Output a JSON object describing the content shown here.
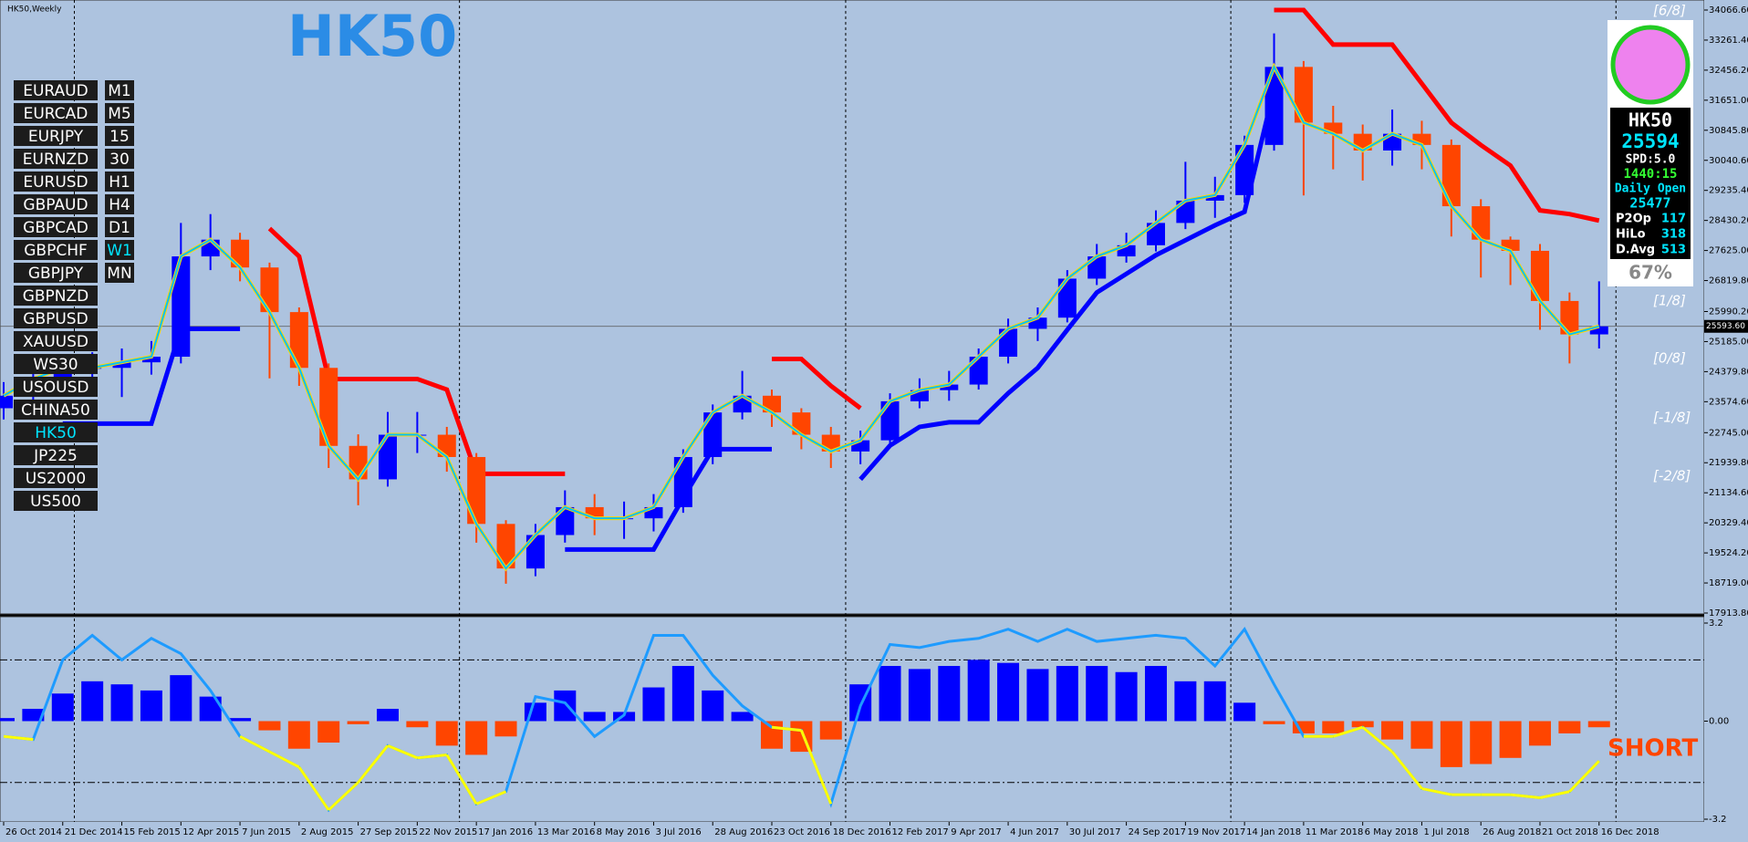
{
  "window_title": "HK50,Weekly",
  "watermark": "HK50",
  "signal": "SHORT",
  "symbols": [
    {
      "symbol": "EURAUD",
      "timeframe": "M1"
    },
    {
      "symbol": "EURCAD",
      "timeframe": "M5"
    },
    {
      "symbol": "EURJPY",
      "timeframe": "15"
    },
    {
      "symbol": "EURNZD",
      "timeframe": "30"
    },
    {
      "symbol": "EURUSD",
      "timeframe": "H1"
    },
    {
      "symbol": "GBPAUD",
      "timeframe": "H4"
    },
    {
      "symbol": "GBPCAD",
      "timeframe": "D1"
    },
    {
      "symbol": "GBPCHF",
      "timeframe": "W1"
    },
    {
      "symbol": "GBPJPY",
      "timeframe": "MN"
    },
    {
      "symbol": "GBPNZD"
    },
    {
      "symbol": "GBPUSD"
    },
    {
      "symbol": "XAUUSD"
    },
    {
      "symbol": "WS30"
    },
    {
      "symbol": "USOUSD"
    },
    {
      "symbol": "CHINA50"
    },
    {
      "symbol": "HK50"
    },
    {
      "symbol": "JP225"
    },
    {
      "symbol": "US2000"
    },
    {
      "symbol": "US500"
    }
  ],
  "info_panel": {
    "symbol": "HK50",
    "price": "25594",
    "spread": "SPD:5.0",
    "timer": "1440:15",
    "daily_open_label": "Daily Open",
    "daily_open": "25477",
    "rows": [
      [
        "P2Op",
        "117"
      ],
      [
        "HiLo",
        "318"
      ],
      [
        "D.Avg",
        "513"
      ]
    ],
    "percent": "67%"
  },
  "gann_levels": [
    "[6/8]",
    "[1/8]",
    "[0/8]",
    "[-1/8]",
    "[-2/8]"
  ],
  "chart_data": [
    {
      "type": "candlestick",
      "colors": {
        "up": "#0000ff",
        "down": "#ff4500"
      },
      "x": [
        "2014-10-26",
        "2014-11-23",
        "2014-12-21",
        "2015-01-18",
        "2015-02-15",
        "2015-03-15",
        "2015-04-12",
        "2015-05-10",
        "2015-06-07",
        "2015-07-05",
        "2015-08-02",
        "2015-08-30",
        "2015-09-27",
        "2015-10-25",
        "2015-11-22",
        "2015-12-20",
        "2016-01-17",
        "2016-02-14",
        "2016-03-13",
        "2016-04-10",
        "2016-05-08",
        "2016-06-05",
        "2016-07-03",
        "2016-07-31",
        "2016-08-28",
        "2016-09-25",
        "2016-10-23",
        "2016-11-20",
        "2016-12-18",
        "2017-01-15",
        "2017-02-12",
        "2017-03-12",
        "2017-04-09",
        "2017-05-07",
        "2017-06-04",
        "2017-07-02",
        "2017-07-30",
        "2017-08-27",
        "2017-09-24",
        "2017-10-22",
        "2017-11-19",
        "2017-12-17",
        "2018-01-14",
        "2018-02-11",
        "2018-03-11",
        "2018-04-08",
        "2018-05-06",
        "2018-06-03",
        "2018-07-01",
        "2018-07-29",
        "2018-08-26",
        "2018-09-23",
        "2018-10-21",
        "2018-11-18",
        "2018-12-16"
      ],
      "open": [
        23400,
        23735,
        24183,
        24481,
        24481,
        24630,
        24780,
        27467,
        27915,
        27170,
        25975,
        24481,
        22391,
        21495,
        22690,
        22690,
        22093,
        20301,
        19107,
        20003,
        20750,
        20451,
        20451,
        20750,
        22093,
        23287,
        23735,
        23287,
        22690,
        22242,
        22541,
        23586,
        23884,
        24034,
        24780,
        25527,
        25826,
        26871,
        27467,
        27766,
        28363,
        28960,
        29109,
        30453,
        32543,
        31050,
        30752,
        30304,
        30752,
        30453,
        28811,
        27915,
        27616,
        26273,
        25378
      ],
      "high": [
        24100,
        24500,
        24800,
        24900,
        25000,
        25200,
        28363,
        28600,
        28100,
        27300,
        26100,
        24600,
        22700,
        23300,
        23300,
        22900,
        22200,
        20400,
        20300,
        21200,
        21100,
        20900,
        21100,
        22300,
        23500,
        24400,
        23900,
        23400,
        22900,
        22800,
        23800,
        24200,
        24400,
        25000,
        25800,
        26100,
        27100,
        27800,
        28100,
        28700,
        30000,
        29600,
        30700,
        33439,
        32700,
        31500,
        31000,
        31400,
        31100,
        30600,
        29000,
        28000,
        27800,
        26500,
        26800
      ],
      "low": [
        23100,
        23500,
        23900,
        24000,
        23700,
        24300,
        24600,
        27100,
        26800,
        24200,
        24000,
        21800,
        20800,
        21300,
        22200,
        21700,
        19800,
        18700,
        18900,
        19800,
        20000,
        19900,
        20100,
        20600,
        21900,
        23100,
        22900,
        22300,
        21800,
        21900,
        22400,
        23400,
        23600,
        23900,
        24600,
        25200,
        25700,
        26700,
        27300,
        27600,
        28200,
        28500,
        28900,
        30300,
        29100,
        29800,
        29500,
        29900,
        29800,
        28000,
        26900,
        26700,
        25500,
        24600,
        25000
      ],
      "close": [
        23735,
        24183,
        24481,
        24481,
        24630,
        24780,
        27467,
        27915,
        27170,
        25975,
        24481,
        22391,
        21495,
        22690,
        22690,
        22093,
        20301,
        19107,
        20003,
        20750,
        20451,
        20451,
        20750,
        22093,
        23287,
        23735,
        23287,
        22690,
        22242,
        22541,
        23586,
        23884,
        24034,
        24780,
        25527,
        25826,
        26871,
        27467,
        27766,
        28363,
        28960,
        29109,
        30453,
        32543,
        31050,
        30752,
        30304,
        30752,
        30453,
        28811,
        27915,
        27616,
        26273,
        25378,
        25594
      ],
      "series": [
        {
          "color": "#ff0000",
          "values": [
            null,
            null,
            null,
            null,
            null,
            null,
            null,
            null,
            null,
            28214,
            27467,
            24183,
            24183,
            24183,
            24183,
            23900,
            21644,
            21644,
            21644,
            21644,
            null,
            null,
            null,
            null,
            null,
            null,
            24720,
            24720,
            24000,
            23400,
            null,
            null,
            null,
            null,
            null,
            null,
            null,
            null,
            null,
            null,
            null,
            null,
            null,
            34066,
            34066,
            33140,
            33140,
            33140,
            32096,
            31050,
            30450,
            29900,
            28700,
            28600,
            28425
          ]
        },
        {
          "color": "#0000ff",
          "values": [
            null,
            null,
            22988,
            22988,
            22988,
            22988,
            25527,
            25527,
            25527,
            null,
            null,
            null,
            null,
            null,
            null,
            null,
            null,
            null,
            null,
            19614,
            19614,
            19614,
            19614,
            21000,
            22302,
            22302,
            22302,
            null,
            null,
            21495,
            22400,
            22900,
            23023,
            23023,
            23800,
            24480,
            25500,
            26500,
            27000,
            27500,
            27900,
            28300,
            28661,
            31946,
            null,
            null,
            null,
            null,
            null,
            null,
            null,
            null,
            null,
            null,
            null
          ]
        }
      ],
      "xlim": [
        "2014-10-26",
        "2019-03-17"
      ],
      "xticks": [
        {
          "value": "2014-10-26",
          "label": "26 Oct 2014"
        },
        {
          "value": "2014-12-21",
          "label": "21 Dec 2014"
        },
        {
          "value": "2015-02-15",
          "label": "15 Feb 2015"
        },
        {
          "value": "2015-04-12",
          "label": "12 Apr 2015"
        },
        {
          "value": "2015-06-07",
          "label": "7 Jun 2015"
        },
        {
          "value": "2015-08-02",
          "label": "2 Aug 2015"
        },
        {
          "value": "2015-09-27",
          "label": "27 Sep 2015"
        },
        {
          "value": "2015-11-22",
          "label": "22 Nov 2015"
        },
        {
          "value": "2016-01-17",
          "label": "17 Jan 2016"
        },
        {
          "value": "2016-03-13",
          "label": "13 Mar 2016"
        },
        {
          "value": "2016-05-08",
          "label": "8 May 2016"
        },
        {
          "value": "2016-07-03",
          "label": "3 Jul 2016"
        },
        {
          "value": "2016-08-28",
          "label": "28 Aug 2016"
        },
        {
          "value": "2016-10-23",
          "label": "23 Oct 2016"
        },
        {
          "value": "2016-12-18",
          "label": "18 Dec 2016"
        },
        {
          "value": "2017-02-12",
          "label": "12 Feb 2017"
        },
        {
          "value": "2017-04-09",
          "label": "9 Apr 2017"
        },
        {
          "value": "2017-06-04",
          "label": "4 Jun 2017"
        },
        {
          "value": "2017-07-30",
          "label": "30 Jul 2017"
        },
        {
          "value": "2017-09-24",
          "label": "24 Sep 2017"
        },
        {
          "value": "2017-11-19",
          "label": "19 Nov 2017"
        },
        {
          "value": "2018-01-14",
          "label": "14 Jan 2018"
        },
        {
          "value": "2018-03-11",
          "label": "11 Mar 2018"
        },
        {
          "value": "2018-05-06",
          "label": "6 May 2018"
        },
        {
          "value": "2018-07-01",
          "label": "1 Jul 2018"
        },
        {
          "value": "2018-08-26",
          "label": "26 Aug 2018"
        },
        {
          "value": "2018-10-21",
          "label": "21 Oct 2018"
        },
        {
          "value": "2018-12-16",
          "label": "16 Dec 2018"
        }
      ],
      "ylim": [
        17913.8,
        34066.6
      ],
      "yticks": [
        {
          "value": 34066.6,
          "label": "34066.60"
        },
        {
          "value": 33261.4,
          "label": "33261.40"
        },
        {
          "value": 32456.2,
          "label": "32456.20"
        },
        {
          "value": 31651,
          "label": "31651.00"
        },
        {
          "value": 30845.8,
          "label": "30845.80"
        },
        {
          "value": 30040.6,
          "label": "30040.60"
        },
        {
          "value": 29235.4,
          "label": "29235.40"
        },
        {
          "value": 28430.2,
          "label": "28430.20"
        },
        {
          "value": 27625,
          "label": "27625.00"
        },
        {
          "value": 26819.8,
          "label": "26819.80"
        },
        {
          "value": 25990.2,
          "label": "25990.20"
        },
        {
          "value": 25185,
          "label": "25185.00"
        },
        {
          "value": 24379.8,
          "label": "24379.80"
        },
        {
          "value": 23574.6,
          "label": "23574.60"
        },
        {
          "value": 22745,
          "label": "22745.00"
        },
        {
          "value": 21939.8,
          "label": "21939.80"
        },
        {
          "value": 21134.6,
          "label": "21134.60"
        },
        {
          "value": 20329.4,
          "label": "20329.40"
        },
        {
          "value": 19524.2,
          "label": "19524.20"
        },
        {
          "value": 18719,
          "label": "18719.00"
        },
        {
          "value": 17913.8,
          "label": "17913.80"
        }
      ],
      "price_label": {
        "value": 25593.6,
        "label": "25593.60"
      }
    },
    {
      "type": "bar",
      "colors": {
        "up": "#0000ff",
        "down": "#ff4500"
      },
      "values": [
        0.1,
        0.4,
        0.9,
        1.3,
        1.2,
        1.0,
        1.5,
        0.8,
        0.1,
        -0.3,
        -0.9,
        -0.7,
        -0.1,
        0.4,
        -0.2,
        -0.8,
        -1.1,
        -0.5,
        0.6,
        1.0,
        0.3,
        0.3,
        1.1,
        1.8,
        1.0,
        0.3,
        -0.9,
        -1.0,
        -0.6,
        1.2,
        1.8,
        1.7,
        1.8,
        2.0,
        1.9,
        1.7,
        1.8,
        1.8,
        1.6,
        1.8,
        1.3,
        1.3,
        0.6,
        -0.1,
        -0.4,
        -0.4,
        -0.2,
        -0.6,
        -0.9,
        -1.5,
        -1.4,
        -1.2,
        -0.8,
        -0.4,
        -0.2
      ],
      "series": [
        {
          "color_up": "#1e9bff",
          "color_down": "#ffff00",
          "values": [
            -0.5,
            -0.6,
            2.0,
            2.8,
            2.0,
            2.7,
            2.2,
            1.0,
            -0.5,
            -1.0,
            -1.5,
            -2.9,
            -2.0,
            -0.8,
            -1.2,
            -1.1,
            -2.7,
            -2.3,
            0.8,
            0.6,
            -0.5,
            0.2,
            2.8,
            2.8,
            1.5,
            0.5,
            -0.2,
            -0.3,
            -2.7,
            0.5,
            2.5,
            2.4,
            2.6,
            2.7,
            3.0,
            2.6,
            3.0,
            2.6,
            2.7,
            2.8,
            2.7,
            1.8,
            3.0,
            1.2,
            -0.5,
            -0.5,
            -0.2,
            -1.0,
            -2.2,
            -2.4,
            -2.4,
            -2.4,
            -2.5,
            -2.3,
            -1.3
          ]
        }
      ],
      "ylim": [
        -3.2,
        3.2
      ],
      "yticks": [
        3.2,
        {
          "value": 0,
          "label": "0.00"
        },
        -3.2
      ],
      "levels": [
        2,
        -2
      ]
    }
  ]
}
